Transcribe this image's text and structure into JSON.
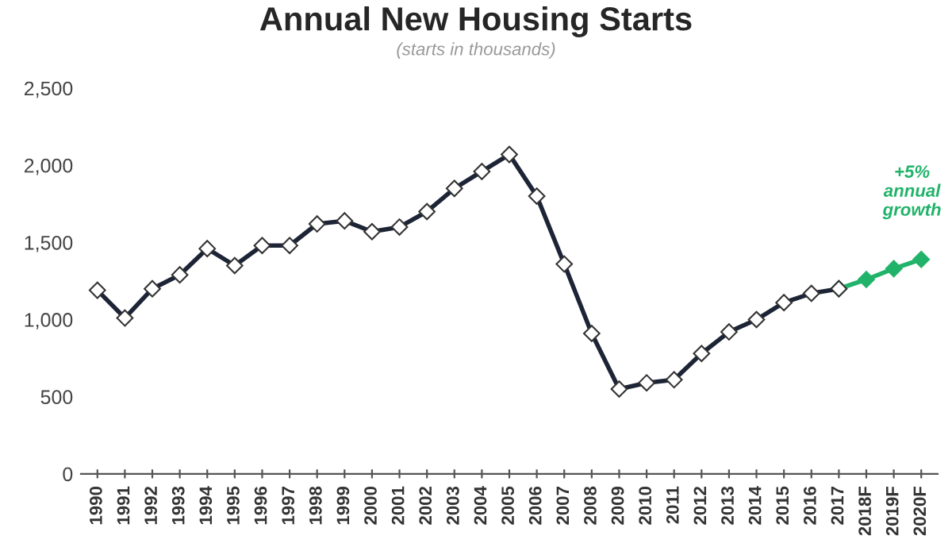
{
  "chart_data": {
    "type": "line",
    "title": "Annual New Housing Starts",
    "subtitle": "(starts in thousands)",
    "categories": [
      "1990",
      "1991",
      "1992",
      "1993",
      "1994",
      "1995",
      "1996",
      "1997",
      "1998",
      "1999",
      "2000",
      "2001",
      "2002",
      "2003",
      "2004",
      "2005",
      "2006",
      "2007",
      "2008",
      "2009",
      "2010",
      "2011",
      "2012",
      "2013",
      "2014",
      "2015",
      "2016",
      "2017",
      "2018F",
      "2019F",
      "2020F"
    ],
    "series": [
      {
        "color": "#1c2436",
        "values": [
          1190,
          1010,
          1200,
          1290,
          1460,
          1350,
          1480,
          1480,
          1620,
          1640,
          1570,
          1600,
          1700,
          1850,
          1960,
          2070,
          1800,
          1360,
          910,
          550,
          590,
          610,
          780,
          920,
          1000,
          1110,
          1170,
          1200,
          null,
          null,
          null
        ]
      },
      {
        "color": "#22b36a",
        "values": [
          null,
          null,
          null,
          null,
          null,
          null,
          null,
          null,
          null,
          null,
          null,
          null,
          null,
          null,
          null,
          null,
          null,
          null,
          null,
          null,
          null,
          null,
          null,
          null,
          null,
          null,
          null,
          1200,
          1260,
          1330,
          1390
        ]
      }
    ],
    "ylim": [
      0,
      2500
    ],
    "yticks": [
      {
        "value": 0,
        "label": "0"
      },
      {
        "value": 500,
        "label": "500"
      },
      {
        "value": 1000,
        "label": "1,000"
      },
      {
        "value": 1500,
        "label": "1,500"
      },
      {
        "value": 2000,
        "label": "2,000"
      },
      {
        "value": 2500,
        "label": "2,500"
      }
    ],
    "marker": "diamond",
    "grid": false,
    "legend": false,
    "annotations": [
      "+5%\nannual\ngrowth"
    ]
  }
}
